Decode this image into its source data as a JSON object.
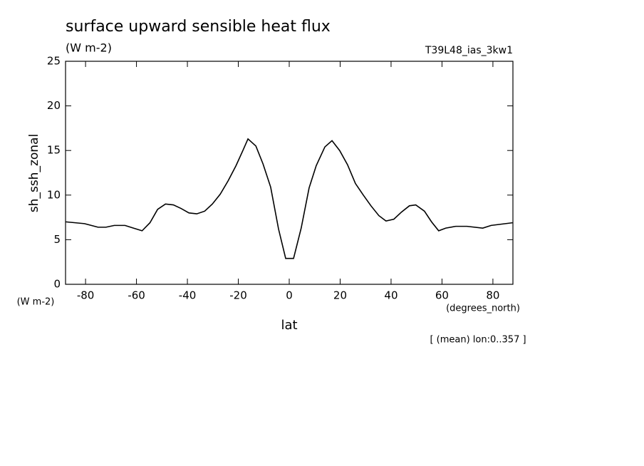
{
  "chart_data": {
    "type": "line",
    "title": "surface upward sensible heat flux",
    "units": "(W m-2)",
    "experiment": "T39L48_ias_3kw1",
    "y_label": "sh_ssh_zonal",
    "y_units": "(W m-2)",
    "x_units": "(degrees_north)",
    "x_label": "lat",
    "note": "[ (mean) lon:0..357 ]",
    "x": [
      -87.7,
      -80.4,
      -75.1,
      -72,
      -68.7,
      -64.5,
      -61.2,
      -57.8,
      -54.7,
      -51.7,
      -48.6,
      -45.5,
      -42.5,
      -39.4,
      -36.3,
      -33.2,
      -30.2,
      -27.1,
      -24.0,
      -20.9,
      -18.2,
      -16.2,
      -13.1,
      -10.3,
      -7.3,
      -4.2,
      -1.4,
      1.7,
      4.7,
      7.8,
      10.6,
      14.0,
      16.8,
      19.8,
      22.9,
      26.0,
      29.1,
      32.1,
      35.2,
      38.0,
      41.1,
      44.1,
      47.2,
      49.7,
      53.1,
      55.9,
      58.7,
      61.5,
      65.4,
      69.8,
      76.0,
      79.3,
      87.7
    ],
    "series": [
      {
        "color": "#000000",
        "values": [
          7.0,
          6.8,
          6.4,
          6.4,
          6.6,
          6.6,
          6.3,
          6.0,
          6.9,
          8.4,
          9.0,
          8.9,
          8.5,
          8.0,
          7.9,
          8.2,
          9.0,
          10.1,
          11.6,
          13.3,
          15.0,
          16.3,
          15.5,
          13.5,
          10.9,
          6.2,
          2.9,
          2.9,
          6.3,
          10.8,
          13.3,
          15.4,
          16.1,
          15.0,
          13.4,
          11.3,
          10.0,
          8.8,
          7.7,
          7.1,
          7.3,
          8.1,
          8.8,
          8.9,
          8.2,
          7.0,
          6.0,
          6.3,
          6.5,
          6.5,
          6.3,
          6.6,
          6.9
        ]
      }
    ],
    "xlim": [
      -87.86,
      87.86
    ],
    "ylim": [
      0,
      25
    ],
    "xticks": [
      -80,
      -60,
      -40,
      -20,
      0,
      20,
      40,
      60,
      80
    ],
    "yticks": [
      0,
      5,
      10,
      15,
      20,
      25
    ]
  }
}
